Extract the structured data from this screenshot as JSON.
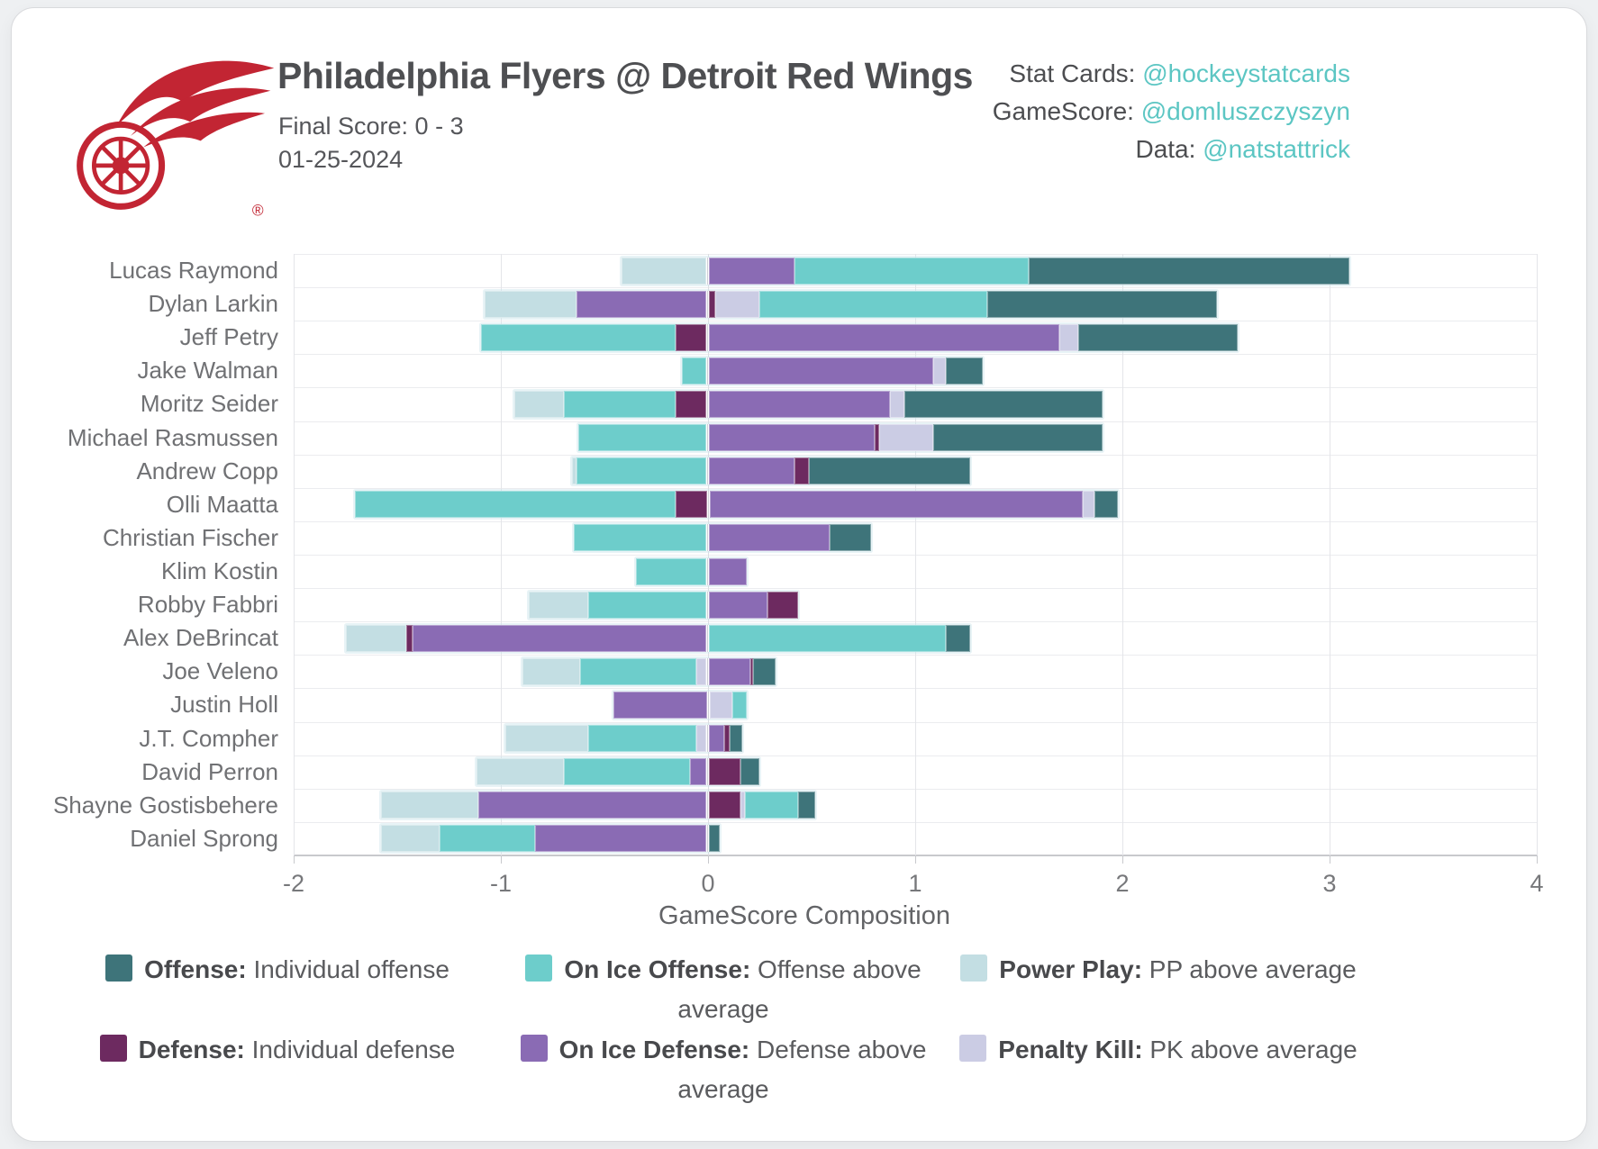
{
  "header": {
    "title": "Philadelphia Flyers @ Detroit Red Wings",
    "final_score": "Final Score: 0 - 3",
    "date": "01-25-2024",
    "reg_mark": "®",
    "credits": [
      {
        "label": "Stat Cards:",
        "handle": "@hockeystatcards"
      },
      {
        "label": "GameScore:",
        "handle": "@domluszczyszyn"
      },
      {
        "label": "Data:",
        "handle": "@natstattrick"
      }
    ]
  },
  "colors": {
    "offense": "#3E747A",
    "on_ice_offense": "#6DCDCB",
    "power_play": "#C3DEE3",
    "defense": "#6D2A60",
    "on_ice_defense": "#8A6BB4",
    "penalty_kill": "#CBCCE4",
    "link_teal": "#5CC6C3",
    "team_red": "#C22533"
  },
  "chart_data": {
    "type": "bar",
    "orientation": "horizontal",
    "stacked": true,
    "title": "",
    "xlabel": "GameScore Composition",
    "ylabel": "",
    "xlim": [
      -2,
      4
    ],
    "xticks": [
      -2,
      -1,
      0,
      1,
      2,
      3,
      4
    ],
    "grid": true,
    "legend_position": "bottom",
    "players": [
      {
        "name": "Lucas Raymond",
        "neg": [
          [
            "power_play",
            0.41
          ]
        ],
        "pos": [
          [
            "on_ice_defense",
            0.41
          ],
          [
            "on_ice_offense",
            1.13
          ],
          [
            "offense",
            1.55
          ]
        ]
      },
      {
        "name": "Dylan Larkin",
        "neg": [
          [
            "power_play",
            0.44
          ],
          [
            "on_ice_defense",
            0.63
          ]
        ],
        "pos": [
          [
            "defense",
            0.03
          ],
          [
            "penalty_kill",
            0.21
          ],
          [
            "on_ice_offense",
            1.1
          ],
          [
            "offense",
            1.11
          ]
        ]
      },
      {
        "name": "Jeff Petry",
        "neg": [
          [
            "on_ice_offense",
            0.94
          ],
          [
            "defense",
            0.15
          ]
        ],
        "pos": [
          [
            "on_ice_defense",
            1.69
          ],
          [
            "penalty_kill",
            0.09
          ],
          [
            "offense",
            0.77
          ]
        ]
      },
      {
        "name": "Jake Walman",
        "neg": [
          [
            "on_ice_offense",
            0.12
          ]
        ],
        "pos": [
          [
            "on_ice_defense",
            1.08
          ],
          [
            "penalty_kill",
            0.06
          ],
          [
            "offense",
            0.18
          ]
        ]
      },
      {
        "name": "Moritz Seider",
        "neg": [
          [
            "power_play",
            0.24
          ],
          [
            "on_ice_offense",
            0.54
          ],
          [
            "defense",
            0.15
          ]
        ],
        "pos": [
          [
            "on_ice_defense",
            0.87
          ],
          [
            "penalty_kill",
            0.07
          ],
          [
            "offense",
            0.96
          ]
        ]
      },
      {
        "name": "Michael Rasmussen",
        "neg": [
          [
            "on_ice_offense",
            0.62
          ]
        ],
        "pos": [
          [
            "on_ice_defense",
            0.8
          ],
          [
            "defense",
            0.02
          ],
          [
            "penalty_kill",
            0.26
          ],
          [
            "offense",
            0.82
          ]
        ]
      },
      {
        "name": "Andrew Copp",
        "neg": [
          [
            "power_play",
            0.02
          ],
          [
            "on_ice_offense",
            0.63
          ]
        ],
        "pos": [
          [
            "on_ice_defense",
            0.41
          ],
          [
            "defense",
            0.07
          ],
          [
            "offense",
            0.78
          ]
        ]
      },
      {
        "name": "Olli Maatta",
        "neg": [
          [
            "on_ice_offense",
            1.55
          ],
          [
            "defense",
            0.15
          ]
        ],
        "pos": [
          [
            "on_ice_defense",
            1.8
          ],
          [
            "penalty_kill",
            0.06
          ],
          [
            "offense",
            0.11
          ]
        ]
      },
      {
        "name": "Christian Fischer",
        "neg": [
          [
            "on_ice_offense",
            0.64
          ]
        ],
        "pos": [
          [
            "on_ice_defense",
            0.58
          ],
          [
            "offense",
            0.2
          ]
        ]
      },
      {
        "name": "Klim Kostin",
        "neg": [
          [
            "on_ice_offense",
            0.34
          ]
        ],
        "pos": [
          [
            "on_ice_defense",
            0.18
          ]
        ]
      },
      {
        "name": "Robby Fabbri",
        "neg": [
          [
            "power_play",
            0.29
          ],
          [
            "on_ice_offense",
            0.57
          ]
        ],
        "pos": [
          [
            "on_ice_defense",
            0.28
          ],
          [
            "defense",
            0.15
          ]
        ]
      },
      {
        "name": "Alex DeBrincat",
        "neg": [
          [
            "power_play",
            0.29
          ],
          [
            "defense",
            0.03
          ],
          [
            "on_ice_defense",
            1.42
          ]
        ],
        "pos": [
          [
            "on_ice_offense",
            1.14
          ],
          [
            "offense",
            0.12
          ]
        ]
      },
      {
        "name": "Joe Veleno",
        "neg": [
          [
            "power_play",
            0.28
          ],
          [
            "on_ice_offense",
            0.56
          ],
          [
            "penalty_kill",
            0.05
          ]
        ],
        "pos": [
          [
            "on_ice_defense",
            0.2
          ],
          [
            "defense",
            0.01
          ],
          [
            "offense",
            0.11
          ]
        ]
      },
      {
        "name": "Justin Holl",
        "neg": [
          [
            "on_ice_defense",
            0.45
          ]
        ],
        "pos": [
          [
            "penalty_kill",
            0.11
          ],
          [
            "on_ice_offense",
            0.07
          ]
        ]
      },
      {
        "name": "J.T. Compher",
        "neg": [
          [
            "power_play",
            0.4
          ],
          [
            "on_ice_offense",
            0.52
          ],
          [
            "penalty_kill",
            0.05
          ]
        ],
        "pos": [
          [
            "on_ice_defense",
            0.07
          ],
          [
            "defense",
            0.03
          ],
          [
            "offense",
            0.06
          ]
        ]
      },
      {
        "name": "David Perron",
        "neg": [
          [
            "power_play",
            0.42
          ],
          [
            "on_ice_offense",
            0.61
          ],
          [
            "on_ice_defense",
            0.08
          ]
        ],
        "pos": [
          [
            "defense",
            0.15
          ],
          [
            "offense",
            0.09
          ]
        ]
      },
      {
        "name": "Shayne Gostisbehere",
        "neg": [
          [
            "power_play",
            0.47
          ],
          [
            "on_ice_defense",
            1.1
          ]
        ],
        "pos": [
          [
            "defense",
            0.15
          ],
          [
            "penalty_kill",
            0.02
          ],
          [
            "on_ice_offense",
            0.26
          ],
          [
            "offense",
            0.08
          ]
        ]
      },
      {
        "name": "Daniel Sprong",
        "neg": [
          [
            "power_play",
            0.28
          ],
          [
            "on_ice_offense",
            0.46
          ],
          [
            "on_ice_defense",
            0.83
          ]
        ],
        "pos": [
          [
            "offense",
            0.05
          ]
        ]
      }
    ]
  },
  "legend": {
    "rows": [
      [
        {
          "key": "offense",
          "label": "Offense:",
          "desc": "Individual offense"
        },
        {
          "key": "on_ice_offense",
          "label": "On Ice Offense:",
          "desc": "Offense above average"
        },
        {
          "key": "power_play",
          "label": "Power Play:",
          "desc": "PP above average"
        }
      ],
      [
        {
          "key": "defense",
          "label": "Defense:",
          "desc": "Individual defense"
        },
        {
          "key": "on_ice_defense",
          "label": "On Ice Defense:",
          "desc": "Defense above average"
        },
        {
          "key": "penalty_kill",
          "label": "Penalty Kill:",
          "desc": "PK above average"
        }
      ]
    ]
  }
}
